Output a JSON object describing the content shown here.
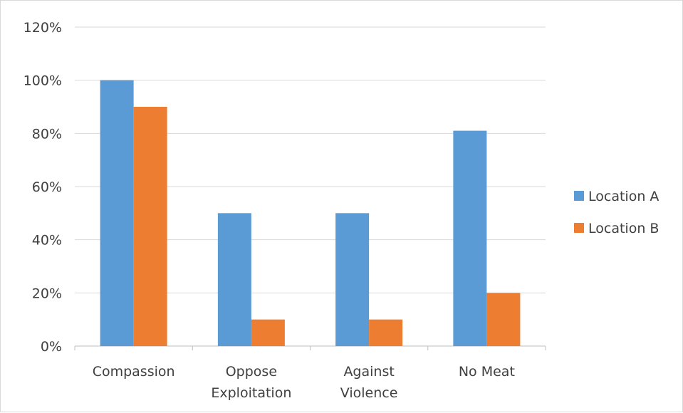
{
  "chart_data": {
    "type": "bar",
    "title": "",
    "xlabel": "",
    "ylabel": "",
    "categories": [
      [
        "Compassion"
      ],
      [
        "Oppose",
        "Exploitation"
      ],
      [
        "Against",
        "Violence"
      ],
      [
        "No Meat"
      ]
    ],
    "series": [
      {
        "name": "Location A",
        "color": "#5b9bd5",
        "values": [
          1.0,
          0.5,
          0.5,
          0.81
        ]
      },
      {
        "name": "Location B",
        "color": "#ed7d31",
        "values": [
          0.9,
          0.1,
          0.1,
          0.2
        ]
      }
    ],
    "ylim": [
      0,
      1.2
    ],
    "yticks": [
      "0%",
      "20%",
      "40%",
      "60%",
      "80%",
      "100%",
      "120%"
    ],
    "grid": true,
    "legend_position": "right"
  }
}
